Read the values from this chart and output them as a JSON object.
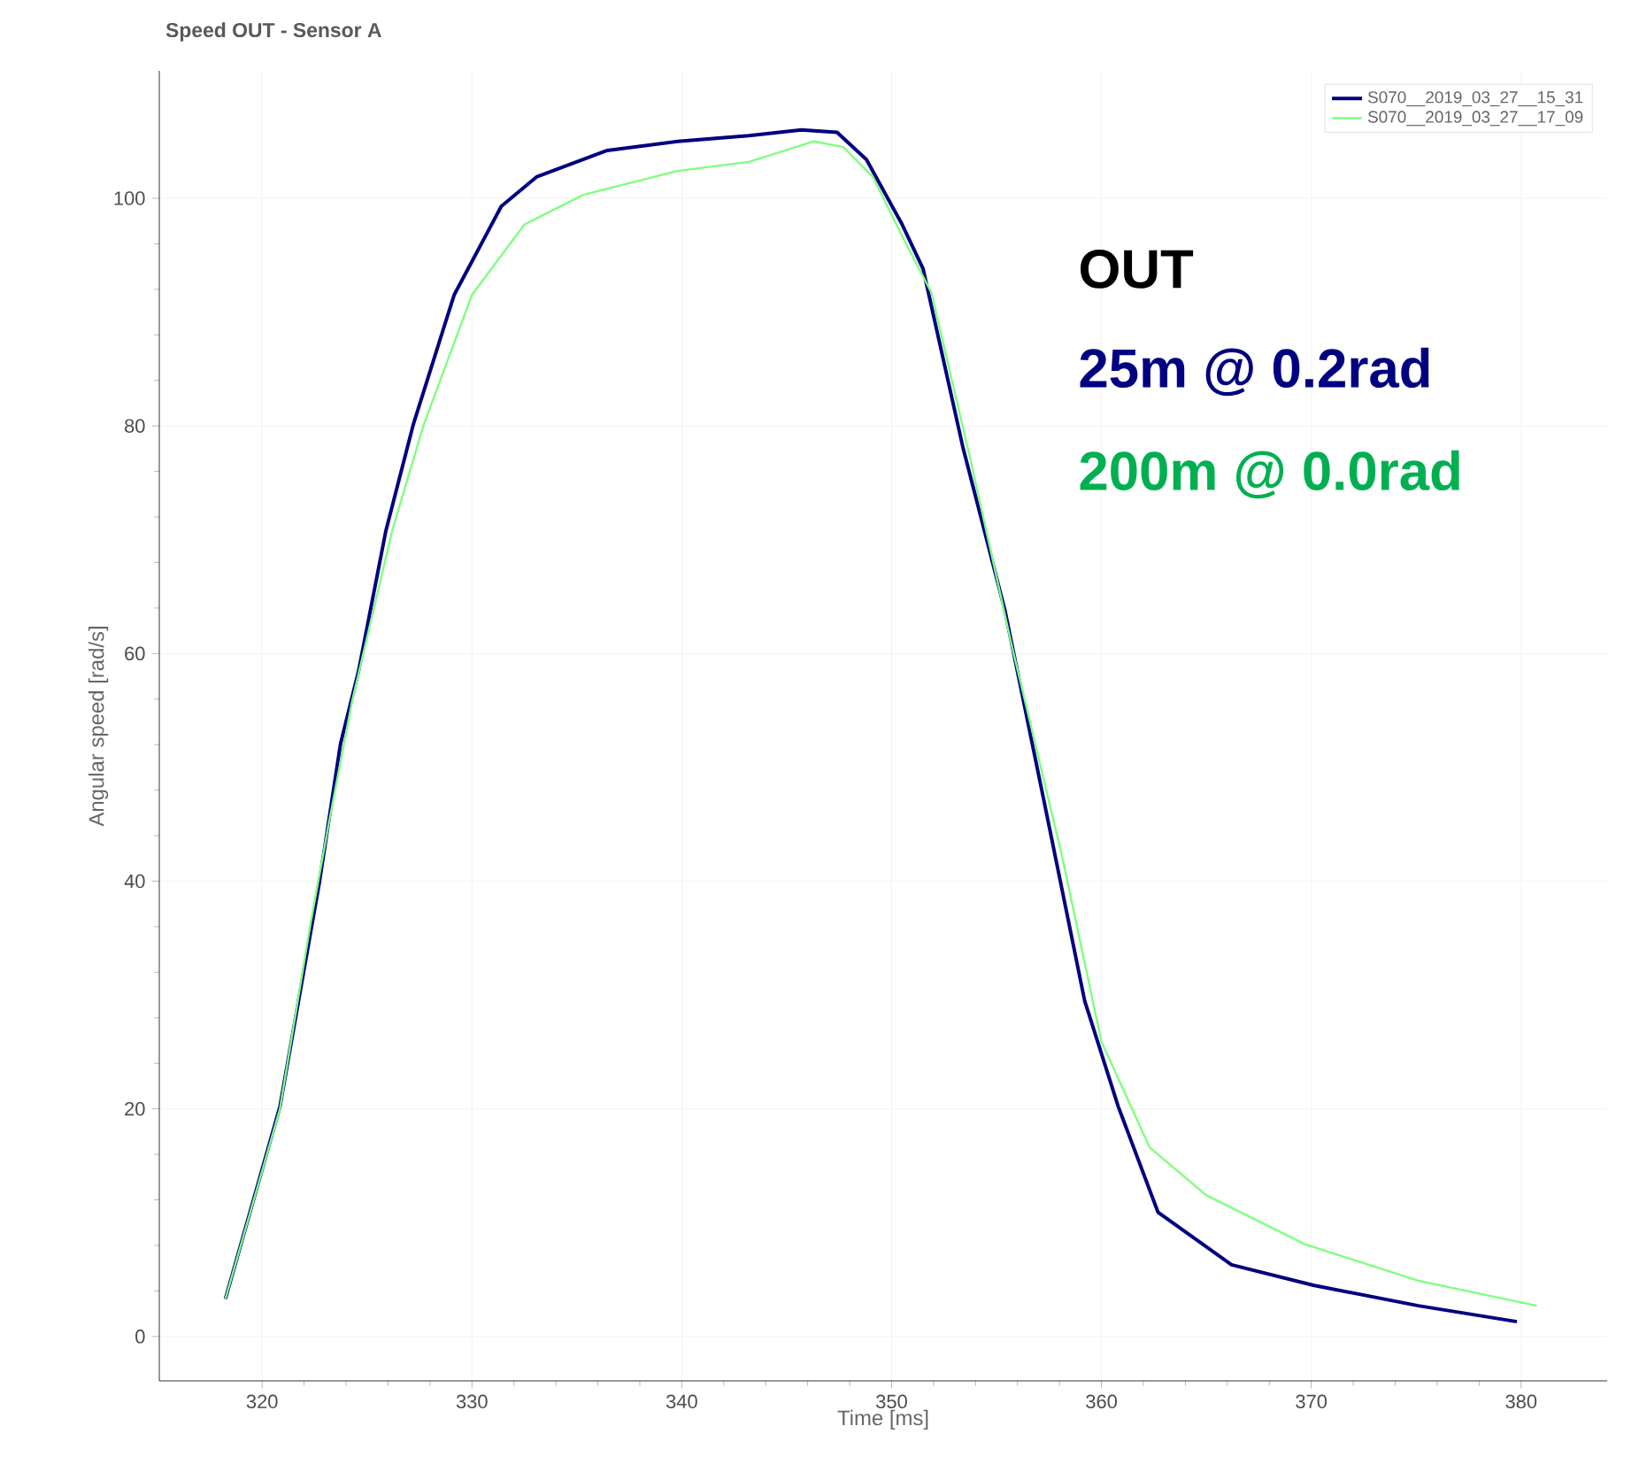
{
  "chart_data": {
    "type": "line",
    "title": "Speed OUT - Sensor A",
    "xlabel": "Time [ms]",
    "ylabel": "Angular speed [rad/s]",
    "xlim": [
      315.1,
      384.1
    ],
    "ylim": [
      -3.9,
      111.2
    ],
    "xticks": [
      320,
      330,
      340,
      350,
      360,
      370,
      380
    ],
    "yticks": [
      0,
      20,
      40,
      60,
      80,
      100
    ],
    "grid": true,
    "legend": "top right",
    "annotations": [
      "OUT",
      "25m @ 0.2rad",
      "200m @ 0.0rad"
    ],
    "series": [
      {
        "name": "S070__2019_03_27__15_31",
        "color": "#000080",
        "x": [
          318.25,
          320.85,
          322.73,
          323.74,
          324.6,
          325.9,
          327.2,
          329.15,
          331.4,
          333.1,
          336.45,
          339.8,
          343.2,
          345.7,
          347.4,
          348.8,
          350.5,
          351.5,
          353.4,
          355.4,
          357.3,
          359.2,
          360.8,
          362.7,
          366.2,
          370.1,
          375.1,
          379.8
        ],
        "values": [
          3.3,
          20.2,
          39.9,
          52.1,
          58.5,
          70.8,
          80.1,
          91.5,
          99.3,
          101.9,
          104.2,
          105.0,
          105.5,
          106.0,
          105.8,
          103.4,
          97.7,
          93.8,
          78.1,
          63.8,
          46.7,
          29.5,
          20.2,
          10.9,
          6.3,
          4.5,
          2.7,
          1.3
        ]
      },
      {
        "name": "S070__2019_03_27__17_09",
        "color": "#7fff7f",
        "x": [
          318.25,
          320.85,
          322.3,
          323.2,
          324.3,
          326.2,
          327.7,
          330.0,
          332.5,
          335.3,
          339.8,
          343.2,
          346.3,
          347.7,
          349.1,
          350.5,
          351.9,
          353.8,
          355.7,
          358.1,
          360.0,
          362.3,
          365.0,
          369.7,
          375.1,
          380.75
        ],
        "values": [
          3.3,
          20.0,
          36.2,
          45.3,
          55.9,
          70.8,
          80.1,
          91.5,
          97.7,
          100.3,
          102.4,
          103.2,
          105.0,
          104.5,
          101.9,
          96.7,
          91.7,
          76.7,
          60.9,
          42.4,
          25.9,
          16.6,
          12.4,
          8.1,
          4.9,
          2.7
        ]
      }
    ]
  }
}
